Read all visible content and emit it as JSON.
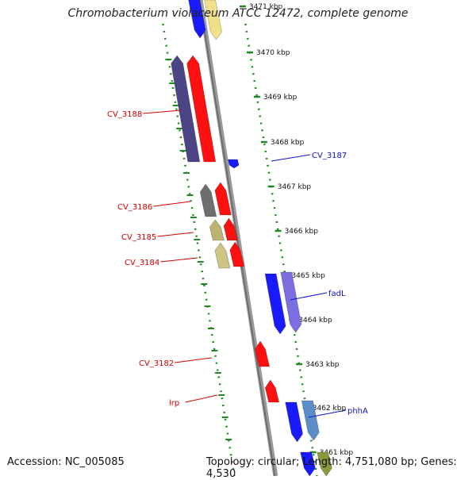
{
  "title": "Chromobacterium violaceum ATCC 12472, complete genome",
  "accession": "Accession: NC_005085",
  "topology": "Topology: circular; Length: 4,751,080 bp; Genes: 4,530",
  "ticks": [
    "3471 kbp",
    "3470 kbp",
    "3469 kbp",
    "3468 kbp",
    "3467 kbp",
    "3466 kbp",
    "3465 kbp",
    "3464 kbp",
    "3463 kbp",
    "3462 kbp",
    "3461 kbp"
  ],
  "genes": [
    {
      "id": "g-3188a",
      "label": "",
      "color": "#4b4585",
      "strand": "fwd"
    },
    {
      "id": "g-3188b",
      "label": "CV_3188",
      "color": "#ff1010",
      "strand": "fwd",
      "label_color": "#d40000"
    },
    {
      "id": "g-3187",
      "label": "CV_3187",
      "color": "#1a1aff",
      "strand": "rev",
      "label_color": "#1010c8"
    },
    {
      "id": "g-3186a",
      "label": "",
      "color": "#6e6e6e",
      "strand": "fwd"
    },
    {
      "id": "g-3186b",
      "label": "CV_3186",
      "color": "#ff1010",
      "strand": "fwd",
      "label_color": "#d40000"
    },
    {
      "id": "g-3185a",
      "label": "",
      "color": "#bdb36e",
      "strand": "fwd"
    },
    {
      "id": "g-3185b",
      "label": "CV_3185",
      "color": "#ff1010",
      "strand": "fwd",
      "label_color": "#d40000"
    },
    {
      "id": "g-3184a",
      "label": "",
      "color": "#cdc483",
      "strand": "fwd"
    },
    {
      "id": "g-3184b",
      "label": "CV_3184",
      "color": "#ff1010",
      "strand": "fwd",
      "label_color": "#d40000"
    },
    {
      "id": "g-fadL-a",
      "label": "fadL",
      "color": "#1a1aff",
      "strand": "rev",
      "label_color": "#1010c8"
    },
    {
      "id": "g-fadL-b",
      "label": "",
      "color": "#7a6ee0",
      "strand": "rev"
    },
    {
      "id": "g-3182",
      "label": "CV_3182",
      "color": "#ff1010",
      "strand": "fwd",
      "label_color": "#d40000"
    },
    {
      "id": "g-lrp",
      "label": "lrp",
      "color": "#ff1010",
      "strand": "fwd",
      "label_color": "#d40000"
    },
    {
      "id": "g-phhA-a",
      "label": "phhA",
      "color": "#1a1aff",
      "strand": "rev",
      "label_color": "#1010c8"
    },
    {
      "id": "g-phhA-b",
      "label": "",
      "color": "#5b8ec8",
      "strand": "rev"
    },
    {
      "id": "g-top-a",
      "label": "",
      "color": "#1a1aff",
      "strand": "rev"
    },
    {
      "id": "g-top-b",
      "label": "",
      "color": "#f0e08a",
      "strand": "rev"
    },
    {
      "id": "g-bot-a",
      "label": "",
      "color": "#1a1aff",
      "strand": "rev"
    },
    {
      "id": "g-bot-b",
      "label": "",
      "color": "#8a9a3a",
      "strand": "rev"
    }
  ],
  "colors": {
    "backbone": "#888888",
    "dots": "#1f8a1f",
    "label_red": "#d40000",
    "label_blue": "#1010c8"
  }
}
